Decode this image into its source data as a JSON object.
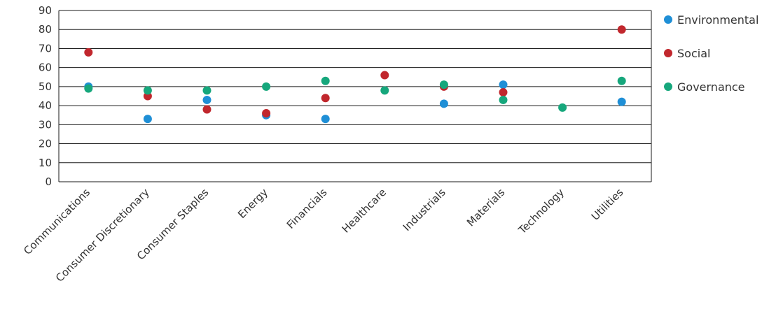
{
  "chart_data": {
    "type": "scatter",
    "categories": [
      "Communications",
      "Consumer Discretionary",
      "Consumer Staples",
      "Energy",
      "Financials",
      "Healthcare",
      "Industrials",
      "Materials",
      "Technology",
      "Utilities"
    ],
    "yticks": [
      "0",
      "10",
      "20",
      "30",
      "40",
      "50",
      "60",
      "70",
      "80",
      "90"
    ],
    "ylim": [
      0,
      90
    ],
    "grid": true,
    "legend_position": "right",
    "series": [
      {
        "name": "Environmental",
        "color": "#1f8fd6",
        "values": [
          50,
          33,
          43,
          35,
          33,
          null,
          41,
          51,
          null,
          42
        ]
      },
      {
        "name": "Social",
        "color": "#c1272d",
        "values": [
          68,
          45,
          38,
          36,
          44,
          56,
          50,
          47,
          null,
          80
        ]
      },
      {
        "name": "Governance",
        "color": "#16a77c",
        "values": [
          49,
          48,
          48,
          50,
          53,
          48,
          51,
          43,
          39,
          53
        ]
      }
    ]
  }
}
